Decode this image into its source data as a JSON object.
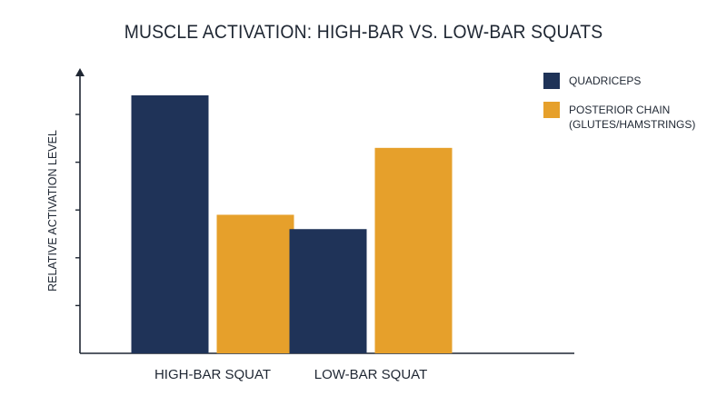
{
  "chart_data": {
    "type": "bar",
    "title": "MUSCLE ACTIVATION: HIGH-BAR VS. LOW-BAR SQUATS",
    "xlabel": "",
    "ylabel": "RELATIVE ACTIVATION LEVEL",
    "categories": [
      "HIGH-BAR SQUAT",
      "LOW-BAR SQUAT"
    ],
    "series": [
      {
        "name": "QUADRICEPS",
        "values": [
          5.4,
          2.6
        ],
        "color": "#1f3358"
      },
      {
        "name": "POSTERIOR CHAIN (GLUTES/HAMSTRINGS)",
        "values": [
          2.9,
          4.3
        ],
        "color": "#e6a02b"
      }
    ],
    "legend_lines": [
      [
        "QUADRICEPS"
      ],
      [
        "POSTERIOR CHAIN",
        "(GLUTES/HAMSTRINGS)"
      ]
    ],
    "ylim": [
      0,
      6
    ],
    "ytick_marks": [
      1,
      2,
      3,
      4,
      5
    ],
    "show_tick_labels_y": false,
    "grid": false,
    "legend_position": "top-right"
  }
}
